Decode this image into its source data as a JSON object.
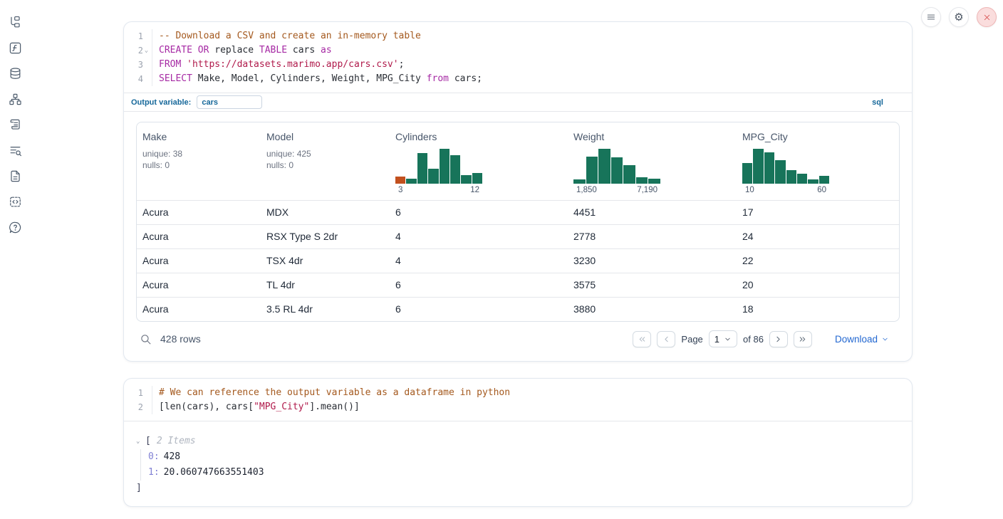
{
  "colors": {
    "hist_green": "#17745a",
    "hist_orange": "#c2501e",
    "accent_blue": "#16689a",
    "link_blue": "#2368d1",
    "close_red": "#d64848"
  },
  "sidebar": {
    "items": [
      {
        "icon": "file-tree-icon"
      },
      {
        "icon": "function-icon"
      },
      {
        "icon": "database-icon"
      },
      {
        "icon": "dependency-graph-icon"
      },
      {
        "icon": "scroll-icon"
      },
      {
        "icon": "log-search-icon"
      },
      {
        "icon": "document-icon"
      },
      {
        "icon": "snippets-icon"
      },
      {
        "icon": "help-icon"
      }
    ]
  },
  "sql_cell": {
    "lines": [
      {
        "num": "1",
        "fold": false,
        "tokens": [
          [
            "comment",
            "-- Download a CSV and create an in-memory table"
          ]
        ]
      },
      {
        "num": "2",
        "fold": true,
        "tokens": [
          [
            "keyword",
            "CREATE"
          ],
          [
            "plain",
            " "
          ],
          [
            "keyword",
            "OR"
          ],
          [
            "plain",
            " replace "
          ],
          [
            "keyword",
            "TABLE"
          ],
          [
            "plain",
            " cars "
          ],
          [
            "keyword",
            "as"
          ]
        ]
      },
      {
        "num": "3",
        "fold": false,
        "tokens": [
          [
            "keyword",
            "FROM"
          ],
          [
            "plain",
            " "
          ],
          [
            "string",
            "'https://datasets.marimo.app/cars.csv'"
          ],
          [
            "plain",
            ";"
          ]
        ]
      },
      {
        "num": "4",
        "fold": false,
        "tokens": [
          [
            "keyword",
            "SELECT"
          ],
          [
            "plain",
            " Make, Model, Cylinders, Weight, MPG_City "
          ],
          [
            "keyword",
            "from"
          ],
          [
            "plain",
            " cars;"
          ]
        ]
      }
    ],
    "output_variable_label": "Output variable:",
    "output_variable_value": "cars",
    "language_badge": "sql"
  },
  "table": {
    "columns": [
      {
        "header": "Make",
        "stats": [
          "unique: 38",
          "nulls: 0"
        ]
      },
      {
        "header": "Model",
        "stats": [
          "unique: 425",
          "nulls: 0"
        ]
      },
      {
        "header": "Cylinders",
        "histogram": {
          "bars": [
            {
              "h": 0.2,
              "c": "orange"
            },
            {
              "h": 0.13,
              "c": "green"
            },
            {
              "h": 0.85,
              "c": "green"
            },
            {
              "h": 0.42,
              "c": "green"
            },
            {
              "h": 0.97,
              "c": "green"
            },
            {
              "h": 0.8,
              "c": "green"
            },
            {
              "h": 0.23,
              "c": "green"
            },
            {
              "h": 0.3,
              "c": "green"
            }
          ],
          "min_label": "3",
          "max_label": "12"
        }
      },
      {
        "header": "Weight",
        "histogram": {
          "bars": [
            {
              "h": 0.12,
              "c": "green"
            },
            {
              "h": 0.76,
              "c": "green"
            },
            {
              "h": 0.97,
              "c": "green"
            },
            {
              "h": 0.73,
              "c": "green"
            },
            {
              "h": 0.52,
              "c": "green"
            },
            {
              "h": 0.17,
              "c": "green"
            },
            {
              "h": 0.13,
              "c": "green"
            }
          ],
          "min_label": "1,850",
          "max_label": "7,190"
        }
      },
      {
        "header": "MPG_City",
        "histogram": {
          "bars": [
            {
              "h": 0.58,
              "c": "green"
            },
            {
              "h": 0.97,
              "c": "green"
            },
            {
              "h": 0.88,
              "c": "green"
            },
            {
              "h": 0.66,
              "c": "green"
            },
            {
              "h": 0.38,
              "c": "green"
            },
            {
              "h": 0.28,
              "c": "green"
            },
            {
              "h": 0.12,
              "c": "green"
            },
            {
              "h": 0.21,
              "c": "green"
            }
          ],
          "min_label": "10",
          "max_label": "60"
        }
      }
    ],
    "rows": [
      [
        "Acura",
        "MDX",
        "6",
        "4451",
        "17"
      ],
      [
        "Acura",
        "RSX Type S 2dr",
        "4",
        "2778",
        "24"
      ],
      [
        "Acura",
        "TSX 4dr",
        "4",
        "3230",
        "22"
      ],
      [
        "Acura",
        "TL 4dr",
        "6",
        "3575",
        "20"
      ],
      [
        "Acura",
        "3.5 RL 4dr",
        "6",
        "3880",
        "18"
      ]
    ],
    "footer": {
      "row_count": "428 rows",
      "page_label": "Page",
      "page_value": "1",
      "of_label": "of 86",
      "download_label": "Download"
    }
  },
  "python_cell": {
    "lines": [
      {
        "num": "1",
        "fold": false,
        "tokens": [
          [
            "comment",
            "# We can reference the output variable as a dataframe in python"
          ]
        ]
      },
      {
        "num": "2",
        "fold": false,
        "tokens": [
          [
            "plain",
            "[len(cars), cars["
          ],
          [
            "string",
            "\"MPG_City\""
          ],
          [
            "plain",
            "].mean()]"
          ]
        ]
      }
    ]
  },
  "output_tree": {
    "open_bracket": "[",
    "items_label": "2 Items",
    "entries": [
      {
        "key": "0:",
        "value": "428"
      },
      {
        "key": "1:",
        "value": "20.060747663551403"
      }
    ],
    "close_bracket": "]"
  }
}
